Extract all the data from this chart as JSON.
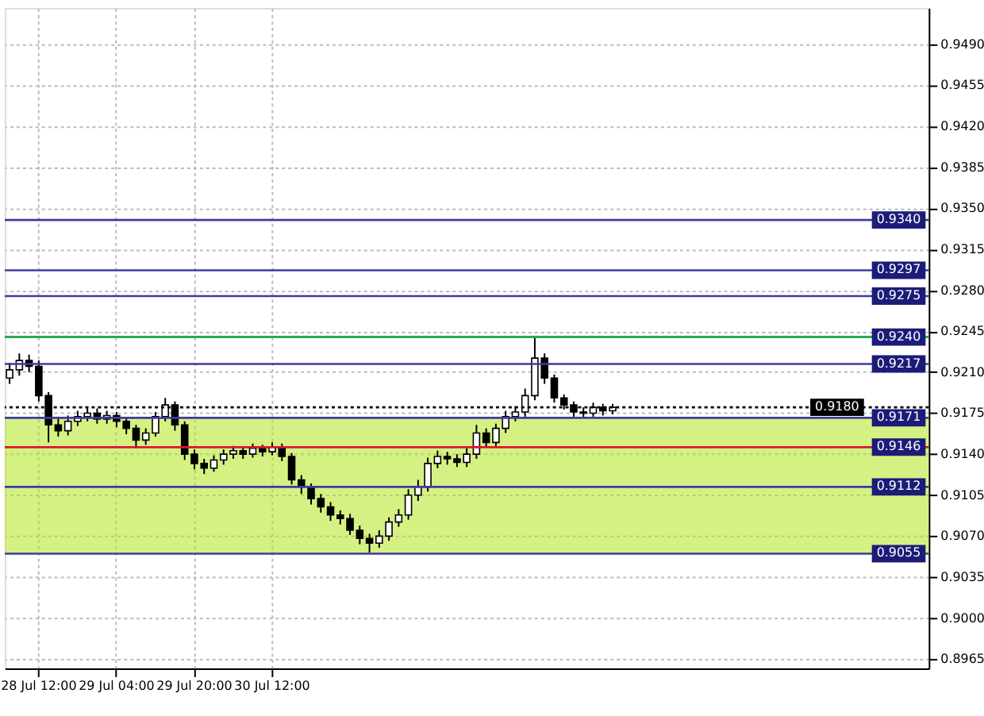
{
  "chart_data": {
    "type": "candlestick",
    "categories": [
      null,
      null,
      null,
      "28 Jul 12:00",
      null,
      null,
      null,
      null,
      null,
      null,
      null,
      "29 Jul 04:00",
      null,
      null,
      null,
      null,
      null,
      null,
      null,
      "29 Jul 20:00",
      null,
      null,
      null,
      null,
      null,
      null,
      null,
      "30 Jul 12:00",
      null,
      null,
      null,
      null,
      null,
      null,
      null,
      null,
      null,
      null,
      null,
      null,
      null,
      null,
      null,
      null,
      null,
      null,
      null,
      null,
      null,
      null,
      null,
      null,
      null,
      null,
      null,
      null,
      null,
      null,
      null,
      null,
      null,
      null,
      null,
      null,
      null,
      null,
      null,
      null,
      null,
      null,
      null,
      null,
      null,
      null,
      null,
      null,
      null,
      null,
      null,
      null,
      null,
      null,
      null,
      null,
      null,
      null,
      null,
      null,
      null,
      null,
      null,
      null,
      null,
      null,
      null
    ],
    "ohlc": [
      [
        0.9205,
        0.9218,
        0.92,
        0.9212
      ],
      [
        0.9212,
        0.9226,
        0.9207,
        0.922
      ],
      [
        0.922,
        0.9225,
        0.921,
        0.9215
      ],
      [
        0.9215,
        0.922,
        0.9185,
        0.919
      ],
      [
        0.919,
        0.9193,
        0.915,
        0.9165
      ],
      [
        0.9165,
        0.9172,
        0.9155,
        0.916
      ],
      [
        0.916,
        0.9173,
        0.9156,
        0.9168
      ],
      [
        0.9168,
        0.9177,
        0.9164,
        0.9172
      ],
      [
        0.9172,
        0.918,
        0.9168,
        0.9175
      ],
      [
        0.9175,
        0.9179,
        0.9166,
        0.917
      ],
      [
        0.917,
        0.9177,
        0.9166,
        0.9173
      ],
      [
        0.9173,
        0.9176,
        0.9163,
        0.9168
      ],
      [
        0.9168,
        0.9171,
        0.9157,
        0.9162
      ],
      [
        0.9162,
        0.9165,
        0.9145,
        0.9152
      ],
      [
        0.9152,
        0.9162,
        0.9148,
        0.9158
      ],
      [
        0.9158,
        0.9176,
        0.9155,
        0.9172
      ],
      [
        0.9172,
        0.9188,
        0.9168,
        0.9182
      ],
      [
        0.9182,
        0.9185,
        0.916,
        0.9165
      ],
      [
        0.9165,
        0.9168,
        0.9135,
        0.914
      ],
      [
        0.914,
        0.9144,
        0.9127,
        0.9132
      ],
      [
        0.9132,
        0.9136,
        0.9123,
        0.9128
      ],
      [
        0.9128,
        0.9139,
        0.9125,
        0.9135
      ],
      [
        0.9135,
        0.9144,
        0.9131,
        0.914
      ],
      [
        0.914,
        0.9147,
        0.9136,
        0.9143
      ],
      [
        0.9143,
        0.9146,
        0.9136,
        0.914
      ],
      [
        0.914,
        0.9149,
        0.9137,
        0.9145
      ],
      [
        0.9145,
        0.9148,
        0.9138,
        0.9142
      ],
      [
        0.9142,
        0.915,
        0.9139,
        0.9146
      ],
      [
        0.9146,
        0.9149,
        0.9134,
        0.9138
      ],
      [
        0.9138,
        0.9141,
        0.9114,
        0.9118
      ],
      [
        0.9118,
        0.9122,
        0.9106,
        0.9112
      ],
      [
        0.9112,
        0.9115,
        0.9097,
        0.9102
      ],
      [
        0.9102,
        0.9106,
        0.909,
        0.9095
      ],
      [
        0.9095,
        0.9099,
        0.9083,
        0.9088
      ],
      [
        0.9088,
        0.9092,
        0.908,
        0.9085
      ],
      [
        0.9085,
        0.9089,
        0.9071,
        0.9075
      ],
      [
        0.9075,
        0.9079,
        0.9063,
        0.9068
      ],
      [
        0.9068,
        0.9072,
        0.9056,
        0.9064
      ],
      [
        0.9064,
        0.9075,
        0.906,
        0.907
      ],
      [
        0.907,
        0.9086,
        0.9066,
        0.9082
      ],
      [
        0.9082,
        0.9093,
        0.9078,
        0.9088
      ],
      [
        0.9088,
        0.911,
        0.9084,
        0.9105
      ],
      [
        0.9105,
        0.9118,
        0.91,
        0.9112
      ],
      [
        0.9112,
        0.9137,
        0.9108,
        0.9132
      ],
      [
        0.9132,
        0.9143,
        0.9128,
        0.9138
      ],
      [
        0.9138,
        0.9142,
        0.9131,
        0.9136
      ],
      [
        0.9136,
        0.914,
        0.9129,
        0.9133
      ],
      [
        0.9133,
        0.9145,
        0.9129,
        0.914
      ],
      [
        0.914,
        0.9165,
        0.9136,
        0.9158
      ],
      [
        0.9158,
        0.9162,
        0.9146,
        0.915
      ],
      [
        0.915,
        0.9166,
        0.9147,
        0.9162
      ],
      [
        0.9162,
        0.9177,
        0.9158,
        0.9172
      ],
      [
        0.9172,
        0.9181,
        0.9168,
        0.9176
      ],
      [
        0.9176,
        0.9196,
        0.9172,
        0.919
      ],
      [
        0.919,
        0.924,
        0.9186,
        0.9222
      ],
      [
        0.9222,
        0.9226,
        0.92,
        0.9205
      ],
      [
        0.9205,
        0.9208,
        0.9184,
        0.9188
      ],
      [
        0.9188,
        0.9191,
        0.9178,
        0.9182
      ],
      [
        0.9182,
        0.9185,
        0.9172,
        0.9176
      ],
      [
        0.9176,
        0.918,
        0.9171,
        0.9175
      ],
      [
        0.9175,
        0.9184,
        0.9172,
        0.918
      ],
      [
        0.918,
        0.9183,
        0.9173,
        0.9177
      ],
      [
        0.9177,
        0.9183,
        0.9174,
        0.918
      ],
      null,
      null,
      null,
      null,
      null,
      null,
      null,
      null,
      null,
      null,
      null,
      null,
      null,
      null,
      null,
      null,
      null,
      null,
      null,
      null,
      null,
      null,
      null,
      null,
      null,
      null,
      null,
      null,
      null,
      null,
      null,
      null
    ],
    "ylim": [
      0.8957,
      0.9521
    ],
    "yticks": [
      0.8965,
      {
        "value": 0.9,
        "label": "0.9000"
      },
      0.9035,
      {
        "value": 0.907,
        "label": "0.9070"
      },
      0.9105,
      {
        "value": 0.914,
        "label": "0.9140"
      },
      0.9175,
      {
        "value": 0.921,
        "label": "0.9210"
      },
      0.9245,
      {
        "value": 0.928,
        "label": "0.9280"
      },
      0.9315,
      {
        "value": 0.935,
        "label": "0.9350"
      },
      0.9385,
      {
        "value": 0.942,
        "label": "0.9420"
      },
      0.9455,
      {
        "value": 0.949,
        "label": "0.9490"
      }
    ],
    "ref_lines": [
      {
        "axis": "y",
        "value": 0.934,
        "label": "0.9340",
        "color": "#3c3ca0"
      },
      {
        "axis": "y",
        "value": 0.9297,
        "label": "0.9297",
        "color": "#3c3ca0"
      },
      {
        "axis": "y",
        "value": 0.9275,
        "label": "0.9275",
        "color": "#3c3ca0"
      },
      {
        "axis": "y",
        "value": 0.924,
        "label": "0.9240",
        "color": "#3c3ca0"
      },
      {
        "axis": "y",
        "value": 0.924,
        "label": null,
        "color": "#22b14c"
      },
      {
        "axis": "y",
        "value": 0.9217,
        "label": "0.9217",
        "color": "#3c3ca0"
      },
      {
        "axis": "y",
        "value": 0.918,
        "label": "0.9180",
        "color": "#000000",
        "line_style": "dotted"
      },
      {
        "axis": "y",
        "value": 0.9171,
        "label": "0.9171",
        "color": "#3c3ca0"
      },
      {
        "axis": "y",
        "value": 0.9146,
        "label": "0.9146",
        "color": "#3c3ca0"
      },
      {
        "axis": "y",
        "value": 0.9146,
        "label": null,
        "color": "#e8102a"
      },
      {
        "axis": "y",
        "value": 0.9112,
        "label": "0.9112",
        "color": "#3c3ca0"
      },
      {
        "axis": "y",
        "value": 0.9055,
        "label": "0.9055",
        "color": "#3c3ca0"
      }
    ],
    "bands": [
      {
        "axis": "y",
        "from": 0.9055,
        "to": 0.9171,
        "label": null,
        "color": "#b5e61d"
      }
    ],
    "grid": true
  }
}
